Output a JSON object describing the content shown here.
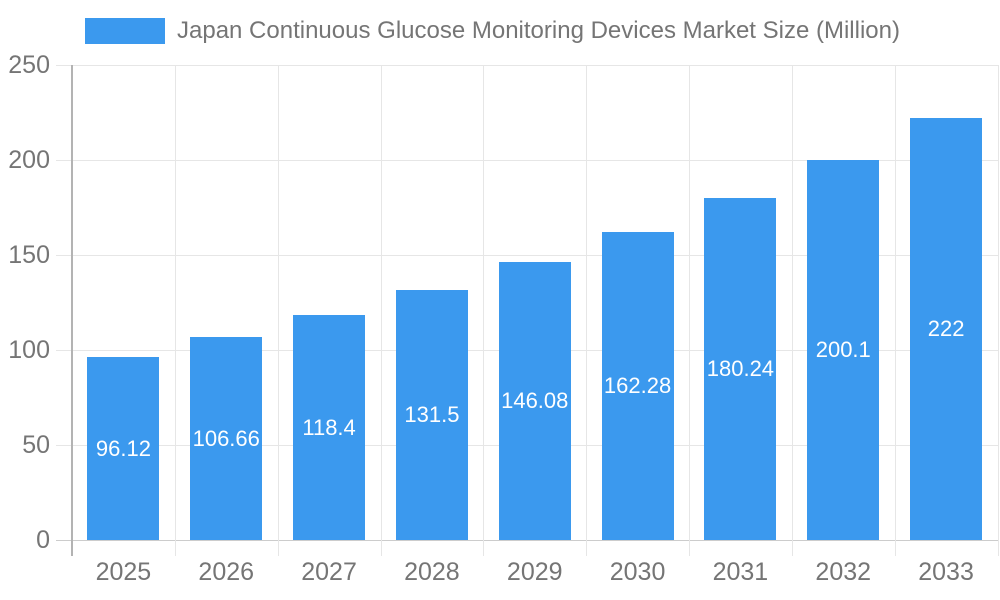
{
  "chart_data": {
    "type": "bar",
    "title": "Japan Continuous Glucose Monitoring Devices Market Size (Million)",
    "categories": [
      "2025",
      "2026",
      "2027",
      "2028",
      "2029",
      "2030",
      "2031",
      "2032",
      "2033"
    ],
    "values": [
      96.12,
      106.66,
      118.4,
      131.5,
      146.08,
      162.28,
      180.24,
      200.1,
      222
    ],
    "value_labels": [
      "96.12",
      "106.66",
      "118.4",
      "131.5",
      "146.08",
      "162.28",
      "180.24",
      "200.1",
      "222"
    ],
    "xlabel": "",
    "ylabel": "",
    "ylim": [
      0,
      250
    ],
    "yticks": [
      0,
      50,
      100,
      150,
      200,
      250
    ],
    "grid": true,
    "legend_position": "top",
    "colors": {
      "bar": "#3b99ee",
      "bar_label_text": "#ffffff",
      "axis_text": "#757575",
      "gridline": "#e6e6e6",
      "zero_line": "#cccccc",
      "axis_line": "#b3b3b3",
      "background": "#ffffff"
    }
  }
}
